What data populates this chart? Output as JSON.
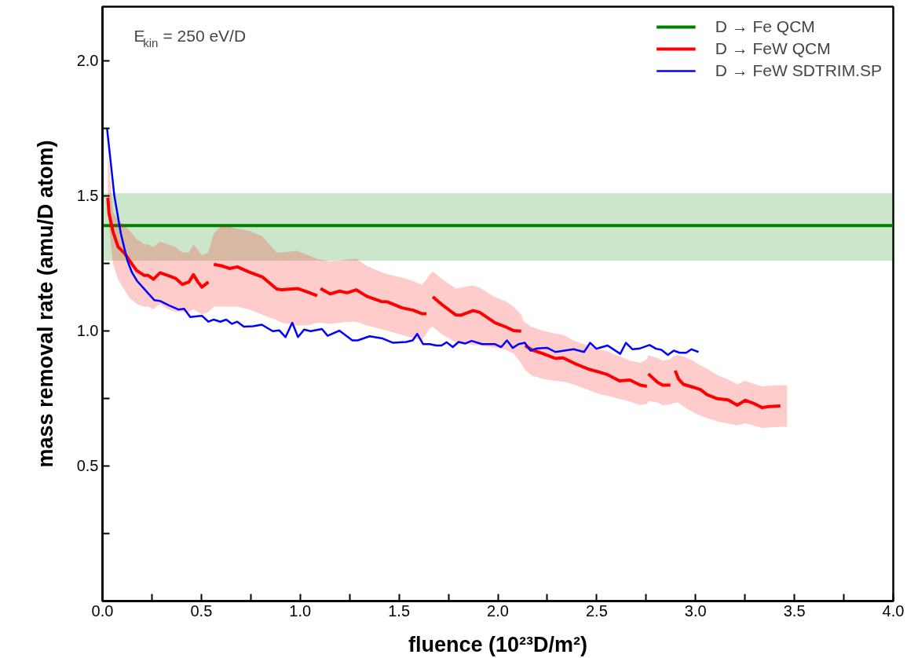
{
  "chart_data": {
    "type": "line",
    "xlabel": "fluence (10²³D/m²)",
    "ylabel": "mass removal rate (amu/D atom)",
    "annotations": [
      "E$_{kin}$ = 250 eV/D"
    ],
    "xlim": [
      0,
      4
    ],
    "ylim": [
      0,
      2.2
    ],
    "xticks": [
      {
        "value": 0,
        "label": "0.0"
      },
      {
        "value": 0.25,
        "label": null
      },
      0.5,
      {
        "value": 0.75,
        "label": null
      },
      {
        "value": 1,
        "label": "1.0"
      },
      {
        "value": 1.25,
        "label": null
      },
      1.5,
      {
        "value": 1.75,
        "label": null
      },
      {
        "value": 2,
        "label": "2.0"
      },
      {
        "value": 2.25,
        "label": null
      },
      2.5,
      {
        "value": 2.75,
        "label": null
      },
      {
        "value": 3,
        "label": "3.0"
      },
      {
        "value": 3.25,
        "label": null
      },
      3.5,
      {
        "value": 3.75,
        "label": null
      },
      {
        "value": 4,
        "label": "4.0"
      }
    ],
    "yticks": [
      {
        "value": 0.25,
        "label": null
      },
      0.5,
      {
        "value": 0.75,
        "label": null
      },
      {
        "value": 1,
        "label": "1.0"
      },
      {
        "value": 1.25,
        "label": null
      },
      1.5,
      {
        "value": 1.75,
        "label": null
      },
      {
        "value": 2,
        "label": "2.0"
      }
    ],
    "grid": false,
    "legend": "top right",
    "marker": "none",
    "line_style": "solid",
    "series": [
      {
        "name": "D → Fe QCM",
        "color": "#008000",
        "x": [
          0,
          4
        ],
        "values": [
          1.39,
          1.39
        ],
        "lower": [
          1.26,
          1.26
        ],
        "upper": [
          1.51,
          1.51
        ]
      },
      {
        "name": "D → FeW QCM",
        "color": "#ff0000",
        "x": [
          0.027,
          0.033,
          0.053,
          0.079,
          0.112,
          0.139,
          0.172,
          0.212,
          0.232,
          0.258,
          0.291,
          0.331,
          0.371,
          0.404,
          0.437,
          0.46,
          0.483,
          0.503,
          0.536,
          0.55,
          0.563,
          0.602,
          0.642,
          0.682,
          0.741,
          0.808,
          0.881,
          0.907,
          0.986,
          1.04,
          1.086,
          1.095,
          1.103,
          1.152,
          1.198,
          1.238,
          1.284,
          1.337,
          1.41,
          1.443,
          1.516,
          1.569,
          1.615,
          1.639,
          1.655,
          1.671,
          1.721,
          1.787,
          1.814,
          1.874,
          1.907,
          1.986,
          2.039,
          2.079,
          2.118,
          2.128,
          2.138,
          2.171,
          2.231,
          2.291,
          2.33,
          2.39,
          2.46,
          2.516,
          2.555,
          2.615,
          2.668,
          2.721,
          2.754,
          2.758,
          2.761,
          2.807,
          2.833,
          2.873,
          2.885,
          2.897,
          2.913,
          2.939,
          2.986,
          3.025,
          3.058,
          3.111,
          3.164,
          3.211,
          3.251,
          3.29,
          3.337,
          3.37,
          3.429,
          3.463
        ],
        "values": [
          1.493,
          1.435,
          1.368,
          1.311,
          1.287,
          1.258,
          1.224,
          1.205,
          1.205,
          1.191,
          1.215,
          1.205,
          1.194,
          1.172,
          1.181,
          1.208,
          1.181,
          1.162,
          1.181,
          null,
          1.246,
          1.241,
          1.231,
          1.237,
          1.218,
          1.2,
          1.155,
          1.152,
          1.157,
          1.143,
          1.13,
          null,
          1.157,
          1.137,
          1.147,
          1.141,
          1.152,
          1.128,
          1.109,
          1.107,
          1.085,
          1.077,
          1.064,
          1.064,
          null,
          1.126,
          1.095,
          1.059,
          1.058,
          1.075,
          1.069,
          1.03,
          1.015,
          1.001,
          0.999,
          null,
          0.946,
          0.93,
          0.915,
          0.898,
          0.9,
          0.879,
          0.858,
          0.847,
          0.838,
          0.815,
          0.818,
          0.799,
          0.795,
          null,
          0.841,
          0.81,
          0.799,
          0.799,
          null,
          0.853,
          0.823,
          0.802,
          0.792,
          0.783,
          0.764,
          0.749,
          0.745,
          0.725,
          0.743,
          0.733,
          0.716,
          0.72,
          0.722,
          null
        ],
        "lower": [
          1.45,
          1.39,
          1.25,
          1.19,
          1.15,
          1.12,
          1.1,
          1.09,
          1.09,
          1.08,
          1.1,
          1.08,
          1.07,
          1.07,
          1.07,
          1.08,
          1.07,
          1.06,
          1.07,
          1.08,
          1.09,
          1.09,
          1.09,
          1.09,
          1.08,
          1.06,
          1.04,
          1.03,
          1.02,
          1.02,
          1.03,
          1.03,
          1.03,
          1.026,
          1.03,
          1.033,
          1.034,
          1.02,
          1.007,
          1.0,
          0.985,
          0.973,
          0.965,
          0.99,
          1.01,
          1.015,
          0.985,
          0.958,
          0.955,
          0.948,
          0.947,
          0.937,
          0.93,
          0.916,
          0.88,
          0.865,
          0.855,
          0.835,
          0.822,
          0.815,
          0.812,
          0.8,
          0.78,
          0.765,
          0.76,
          0.748,
          0.738,
          0.725,
          0.73,
          0.735,
          0.74,
          0.735,
          0.725,
          0.728,
          0.732,
          0.734,
          0.735,
          0.72,
          0.7,
          0.686,
          0.677,
          0.665,
          0.657,
          0.65,
          0.658,
          0.65,
          0.641,
          0.642,
          0.645,
          0.645
        ],
        "upper": [
          1.65,
          1.62,
          1.44,
          1.41,
          1.39,
          1.37,
          1.34,
          1.32,
          1.32,
          1.31,
          1.33,
          1.32,
          1.31,
          1.29,
          1.29,
          1.32,
          1.3,
          1.28,
          1.29,
          1.33,
          1.36,
          1.39,
          1.385,
          1.378,
          1.37,
          1.35,
          1.29,
          1.29,
          1.296,
          1.28,
          1.267,
          1.265,
          1.264,
          1.258,
          1.26,
          1.264,
          1.267,
          1.24,
          1.218,
          1.21,
          1.197,
          1.185,
          1.171,
          1.19,
          1.21,
          1.22,
          1.19,
          1.157,
          1.16,
          1.168,
          1.16,
          1.125,
          1.11,
          1.09,
          1.06,
          1.04,
          1.03,
          1.015,
          1.0,
          0.99,
          0.985,
          0.962,
          0.945,
          0.93,
          0.925,
          0.905,
          0.89,
          0.882,
          0.895,
          0.905,
          0.91,
          0.9,
          0.89,
          0.895,
          0.905,
          0.91,
          0.91,
          0.905,
          0.89,
          0.872,
          0.86,
          0.836,
          0.82,
          0.803,
          0.815,
          0.805,
          0.795,
          0.797,
          0.799,
          0.799
        ]
      },
      {
        "name": "D → FeW SDTRIM.SP",
        "color": "#0000ff",
        "x": [
          0.023,
          0.06,
          0.093,
          0.126,
          0.15,
          0.175,
          0.218,
          0.262,
          0.29,
          0.338,
          0.384,
          0.413,
          0.444,
          0.503,
          0.536,
          0.563,
          0.596,
          0.626,
          0.655,
          0.682,
          0.715,
          0.761,
          0.806,
          0.861,
          0.894,
          0.926,
          0.96,
          0.989,
          1.02,
          1.053,
          1.11,
          1.139,
          1.198,
          1.264,
          1.291,
          1.351,
          1.417,
          1.47,
          1.536,
          1.569,
          1.592,
          1.622,
          1.655,
          1.688,
          1.715,
          1.741,
          1.772,
          1.801,
          1.834,
          1.867,
          1.92,
          1.986,
          2.017,
          2.046,
          2.075,
          2.105,
          2.136,
          2.165,
          2.198,
          2.251,
          2.291,
          2.383,
          2.436,
          2.467,
          2.498,
          2.555,
          2.619,
          2.648,
          2.681,
          2.714,
          2.767,
          2.8,
          2.827,
          2.86,
          2.89,
          2.919,
          2.953,
          2.979,
          3.015
        ],
        "values": [
          1.75,
          1.5,
          1.36,
          1.26,
          1.215,
          1.185,
          1.15,
          1.114,
          1.111,
          1.094,
          1.079,
          1.082,
          1.051,
          1.056,
          1.034,
          1.042,
          1.034,
          1.042,
          1.026,
          1.034,
          1.016,
          1.017,
          1.023,
          0.999,
          1.002,
          0.977,
          1.03,
          0.977,
          1.005,
          0.999,
          1.007,
          0.982,
          1.001,
          0.965,
          0.965,
          0.98,
          0.972,
          0.956,
          0.959,
          0.965,
          0.989,
          0.951,
          0.951,
          0.946,
          0.946,
          0.958,
          0.94,
          0.959,
          0.953,
          0.963,
          0.951,
          0.951,
          0.94,
          0.965,
          0.937,
          0.951,
          0.956,
          0.927,
          0.935,
          0.937,
          0.922,
          0.932,
          0.922,
          0.956,
          0.934,
          0.946,
          0.915,
          0.956,
          0.932,
          0.934,
          0.948,
          0.934,
          0.93,
          0.911,
          0.927,
          0.919,
          0.919,
          0.932,
          0.922
        ]
      }
    ]
  }
}
